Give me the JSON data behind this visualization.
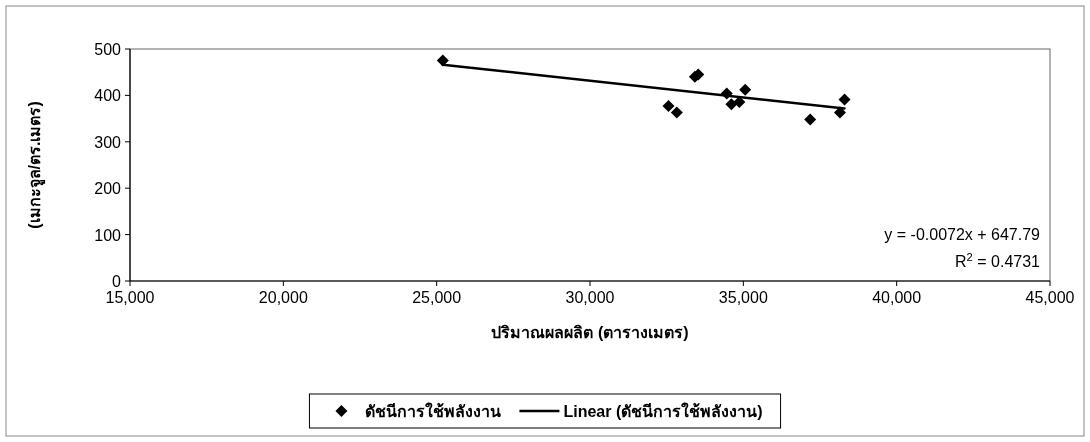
{
  "chart_data": {
    "type": "scatter",
    "xlabel": "ปริมาณผลผลิต (ตารางเมตร)",
    "ylabel": "(เมกะจูล/ตร.เมตร)",
    "xlim": [
      15000,
      45000
    ],
    "xticks": [
      {
        "value": 15000,
        "label": "15,000"
      },
      {
        "value": 20000,
        "label": "20,000"
      },
      {
        "value": 25000,
        "label": "25,000"
      },
      {
        "value": 30000,
        "label": "30,000"
      },
      {
        "value": 35000,
        "label": "35,000"
      },
      {
        "value": 40000,
        "label": "40,000"
      },
      {
        "value": 45000,
        "label": "45,000"
      }
    ],
    "ylim": [
      0,
      500
    ],
    "yticks": [
      0,
      100,
      200,
      300,
      400,
      500
    ],
    "series": [
      {
        "name": "ดัชนีการใช้พลังงาน",
        "type": "scatter",
        "color": "#000000",
        "marker": "diamond",
        "x": [
          25200,
          33530,
          33420,
          32560,
          32830,
          34460,
          34610,
          34870,
          35060,
          37180,
          38150,
          38300
        ],
        "values": [
          475,
          445,
          440,
          377,
          363,
          404,
          381,
          386,
          412,
          348,
          363,
          391
        ]
      },
      {
        "name": "Linear (ดัชนีการใช้พลังงาน)",
        "type": "line",
        "color": "#000000",
        "marker": "none",
        "line_style": "solid",
        "x": [
          25200,
          38300
        ],
        "values": [
          466,
          372
        ]
      }
    ],
    "annotations": [
      "y = -0.0072x + 647.79",
      "R$^{2}$ = 0.4731"
    ],
    "grid": false,
    "legend": "bottom"
  }
}
